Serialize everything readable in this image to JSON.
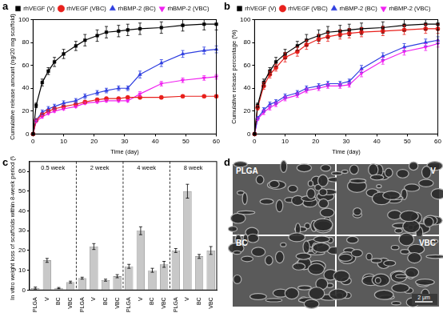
{
  "chart_data": [
    {
      "panel": "a",
      "type": "line",
      "x_label": "Time (day)",
      "y_label": "Cumulative release amount (ng/20 mg scaffold)",
      "x": [
        0,
        1,
        3,
        5,
        7,
        10,
        14,
        17,
        21,
        24,
        28,
        31,
        35,
        42,
        49,
        56,
        60
      ],
      "xlim": [
        0,
        60
      ],
      "xticks": [
        0,
        10,
        20,
        30,
        40,
        50,
        60
      ],
      "ylim": [
        0,
        100
      ],
      "yticks": [
        0,
        20,
        40,
        60,
        80,
        100
      ],
      "grid": false,
      "legend": "top",
      "series": [
        {
          "name": "rhVEGF (V)",
          "color": "#000000",
          "marker": "square",
          "line_style": "solid",
          "values": [
            0,
            25,
            45,
            55,
            63,
            70,
            77,
            82,
            86,
            89,
            90,
            91,
            92,
            93,
            95,
            96,
            96
          ],
          "errors": [
            0,
            2,
            3,
            3,
            4,
            4,
            4,
            5,
            5,
            5,
            5,
            5,
            5,
            5,
            5,
            5,
            5
          ]
        },
        {
          "name": "rhVEGF (VBC)",
          "color": "#e8201c",
          "marker": "circle",
          "line_style": "solid",
          "values": [
            0,
            12,
            17,
            20,
            22,
            24,
            26,
            28,
            30,
            31,
            31,
            32,
            32,
            32,
            33,
            33,
            33
          ],
          "errors": [
            0,
            1,
            1,
            1,
            1,
            1,
            1,
            1,
            1,
            1,
            1,
            1,
            1,
            1,
            1,
            1,
            1
          ]
        },
        {
          "name": "rhBMP-2 (BC)",
          "color": "#2f3fe0",
          "marker": "triangle",
          "line_style": "solid",
          "values": [
            0,
            12,
            19,
            22,
            24,
            27,
            29,
            33,
            36,
            38,
            40,
            40,
            52,
            62,
            70,
            73,
            74
          ],
          "errors": [
            0,
            1,
            2,
            2,
            2,
            2,
            2,
            2,
            2,
            2,
            2,
            2,
            3,
            3,
            3,
            3,
            3
          ]
        },
        {
          "name": "rhBMP-2 (VBC)",
          "color": "#f020f0",
          "marker": "triangle_down",
          "line_style": "solid",
          "values": [
            0,
            11,
            15,
            18,
            20,
            22,
            24,
            27,
            28,
            29,
            29,
            29,
            35,
            44,
            47,
            49,
            50
          ],
          "errors": [
            0,
            1,
            1,
            1,
            1,
            1,
            1,
            1,
            1,
            1,
            1,
            1,
            2,
            2,
            2,
            2,
            2
          ]
        }
      ]
    },
    {
      "panel": "b",
      "type": "line",
      "x_label": "Time (day)",
      "y_label": "Cumulative release percentage (%)",
      "x": [
        0,
        1,
        3,
        5,
        7,
        10,
        14,
        17,
        21,
        24,
        28,
        31,
        35,
        42,
        49,
        56,
        60
      ],
      "xlim": [
        0,
        60
      ],
      "xticks": [
        0,
        10,
        20,
        30,
        40,
        50,
        60
      ],
      "ylim": [
        0,
        100
      ],
      "yticks": [
        0,
        20,
        40,
        60,
        80,
        100
      ],
      "grid": false,
      "legend": "top",
      "series": [
        {
          "name": "rhVEGF (V)",
          "color": "#000000",
          "marker": "square",
          "line_style": "solid",
          "values": [
            0,
            25,
            45,
            55,
            63,
            70,
            77,
            82,
            86,
            89,
            90,
            91,
            92,
            93,
            95,
            96,
            96
          ],
          "errors": [
            0,
            2,
            3,
            3,
            4,
            4,
            4,
            5,
            5,
            5,
            5,
            5,
            5,
            5,
            5,
            5,
            5
          ]
        },
        {
          "name": "rhVEGF (VBC)",
          "color": "#e8201c",
          "marker": "circle",
          "line_style": "solid",
          "values": [
            0,
            23,
            42,
            52,
            58,
            67,
            72,
            78,
            83,
            85,
            87,
            88,
            89,
            90,
            91,
            92,
            92
          ],
          "errors": [
            0,
            2,
            3,
            3,
            3,
            4,
            4,
            4,
            4,
            4,
            4,
            4,
            4,
            4,
            4,
            4,
            4
          ]
        },
        {
          "name": "rhBMP-2 (BC)",
          "color": "#2f3fe0",
          "marker": "triangle",
          "line_style": "solid",
          "values": [
            0,
            14,
            21,
            26,
            28,
            33,
            36,
            40,
            42,
            44,
            44,
            46,
            57,
            68,
            76,
            80,
            82
          ],
          "errors": [
            0,
            1,
            2,
            2,
            2,
            2,
            2,
            2,
            2,
            2,
            2,
            2,
            3,
            3,
            3,
            3,
            3
          ]
        },
        {
          "name": "rhBMP-2 (VBC)",
          "color": "#f020f0",
          "marker": "triangle_down",
          "line_style": "solid",
          "values": [
            0,
            13,
            19,
            23,
            26,
            31,
            34,
            38,
            40,
            42,
            42,
            43,
            53,
            64,
            72,
            76,
            79
          ],
          "errors": [
            0,
            1,
            2,
            2,
            2,
            2,
            2,
            2,
            2,
            2,
            2,
            2,
            3,
            3,
            3,
            3,
            3
          ]
        }
      ]
    },
    {
      "panel": "c",
      "type": "bar",
      "y_label": "In vitro weight loss of scaffolds within 8-week period (%)",
      "categories": [
        "PLGA",
        "V",
        "BC",
        "VBC",
        "PLGA",
        "V",
        "BC",
        "VBC",
        "PLGA",
        "V",
        "BC",
        "VBC",
        "PLGA",
        "V",
        "BC",
        "VBC"
      ],
      "values": [
        1,
        15,
        1,
        4,
        6,
        22,
        5,
        7,
        12,
        30,
        10,
        13,
        20,
        50,
        17,
        20
      ],
      "errors": [
        0.5,
        1,
        0.3,
        0.5,
        0.5,
        1.5,
        0.5,
        0.8,
        1,
        2,
        1,
        1.5,
        1,
        3.5,
        1,
        2
      ],
      "color": "#c8c8c8",
      "annotations": [
        "0.5 week",
        "2 week",
        "4 week",
        "8 week"
      ],
      "ylim": [
        0,
        65
      ],
      "yticks": [
        0,
        10,
        20,
        30,
        40,
        50,
        60
      ],
      "grid": false
    }
  ],
  "micrographs": {
    "panel": "d",
    "labels": [
      "PLGA",
      "V",
      "BC",
      "VBC"
    ],
    "scale_bar": "2 μm"
  }
}
